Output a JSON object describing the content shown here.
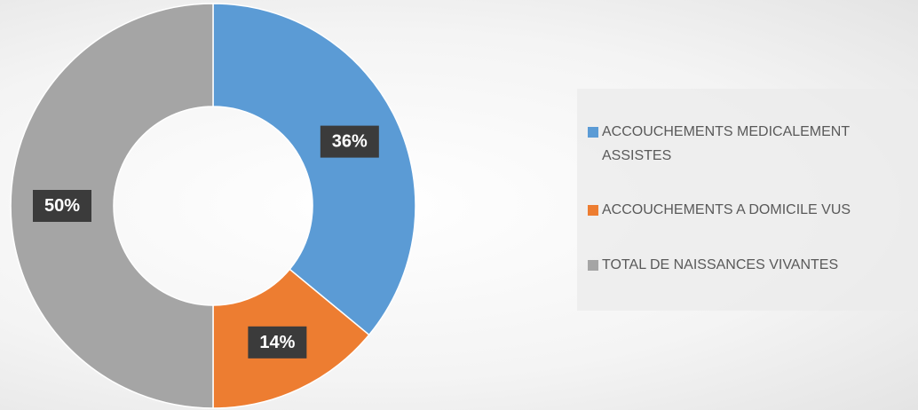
{
  "chart_data": {
    "type": "donut",
    "categories": [
      "ACCOUCHEMENTS MEDICALEMENT ASSISTES",
      "ACCOUCHEMENTS A DOMICILE VUS",
      "TOTAL DE NAISSANCES VIVANTES"
    ],
    "values": [
      36,
      14,
      50
    ],
    "value_labels": [
      "36%",
      "14%",
      "50%"
    ],
    "colors": [
      "#5b9bd5",
      "#ed7d31",
      "#a5a5a5"
    ],
    "legend": "right"
  }
}
